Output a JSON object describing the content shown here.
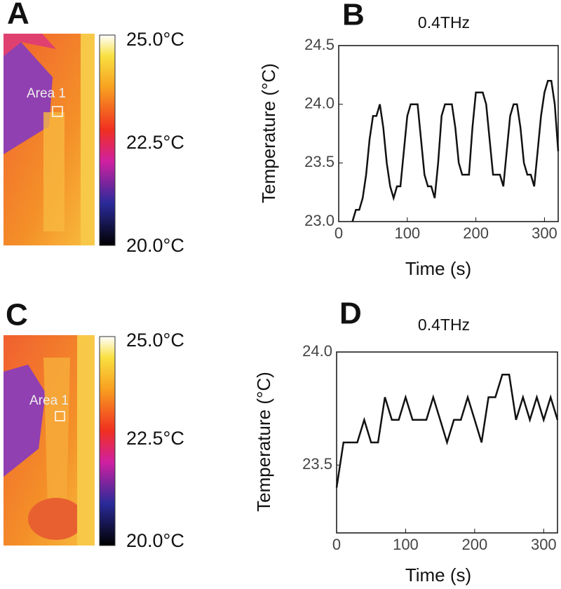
{
  "panels": [
    {
      "label": "A",
      "area_label": "Area 1",
      "colorbar_labels": [
        "25.0°C",
        "22.5°C",
        "20.0°C"
      ]
    },
    {
      "label": "C",
      "area_label": "Area 1",
      "colorbar_labels": [
        "25.0°C",
        "22.5°C",
        "20.0°C"
      ]
    }
  ],
  "chart_data": [
    {
      "type": "line",
      "panel_label": "B",
      "title": "0.4THz",
      "x_label": "Time (s)",
      "y_label": "Temperature (°C)",
      "x": [
        20,
        25,
        30,
        35,
        40,
        45,
        50,
        55,
        60,
        65,
        70,
        75,
        80,
        85,
        90,
        95,
        100,
        105,
        110,
        115,
        120,
        125,
        130,
        135,
        140,
        145,
        150,
        155,
        160,
        165,
        170,
        175,
        180,
        185,
        190,
        195,
        200,
        205,
        210,
        215,
        220,
        225,
        230,
        235,
        240,
        245,
        250,
        255,
        260,
        265,
        270,
        275,
        280,
        285,
        290,
        295,
        300,
        305,
        310,
        315,
        320
      ],
      "series": [
        {
          "color": "#111111",
          "values": [
            23.0,
            23.1,
            23.1,
            23.2,
            23.4,
            23.7,
            23.9,
            23.9,
            24.0,
            23.8,
            23.5,
            23.3,
            23.2,
            23.3,
            23.3,
            23.6,
            23.9,
            24.0,
            24.0,
            24.0,
            23.7,
            23.4,
            23.3,
            23.3,
            23.2,
            23.5,
            23.9,
            24.0,
            24.0,
            24.0,
            23.8,
            23.5,
            23.4,
            23.4,
            23.4,
            23.8,
            24.1,
            24.1,
            24.1,
            24.0,
            23.7,
            23.4,
            23.4,
            23.4,
            23.3,
            23.6,
            23.9,
            24.0,
            24.0,
            23.8,
            23.5,
            23.4,
            23.4,
            23.3,
            23.6,
            23.9,
            24.1,
            24.2,
            24.2,
            24.0,
            23.6
          ]
        }
      ],
      "xlim": [
        0,
        320
      ],
      "xticks": [
        0,
        100,
        200,
        300
      ],
      "ylim": [
        23.0,
        24.5
      ],
      "yticks": [
        {
          "value": 23,
          "label": "23.0"
        },
        23.5,
        {
          "value": 24,
          "label": "24.0"
        },
        24.5
      ]
    },
    {
      "type": "line",
      "panel_label": "D",
      "title": "0.4THz",
      "x_label": "Time (s)",
      "y_label": "Temperature (°C)",
      "x": [
        0,
        10,
        20,
        30,
        40,
        50,
        60,
        70,
        80,
        90,
        100,
        110,
        120,
        130,
        140,
        150,
        160,
        170,
        180,
        190,
        200,
        210,
        220,
        230,
        240,
        250,
        260,
        270,
        280,
        290,
        300,
        310,
        320
      ],
      "series": [
        {
          "color": "#111111",
          "values": [
            23.4,
            23.6,
            23.6,
            23.6,
            23.7,
            23.6,
            23.6,
            23.8,
            23.7,
            23.7,
            23.8,
            23.7,
            23.7,
            23.7,
            23.8,
            23.7,
            23.6,
            23.7,
            23.7,
            23.8,
            23.7,
            23.6,
            23.8,
            23.8,
            23.9,
            23.9,
            23.7,
            23.8,
            23.7,
            23.8,
            23.7,
            23.8,
            23.7
          ]
        }
      ],
      "xlim": [
        0,
        320
      ],
      "xticks": [
        0,
        100,
        200,
        300
      ],
      "ylim": [
        23.2,
        24.0
      ],
      "yticks": [
        23.5,
        {
          "value": 24,
          "label": "24.0"
        }
      ]
    }
  ]
}
